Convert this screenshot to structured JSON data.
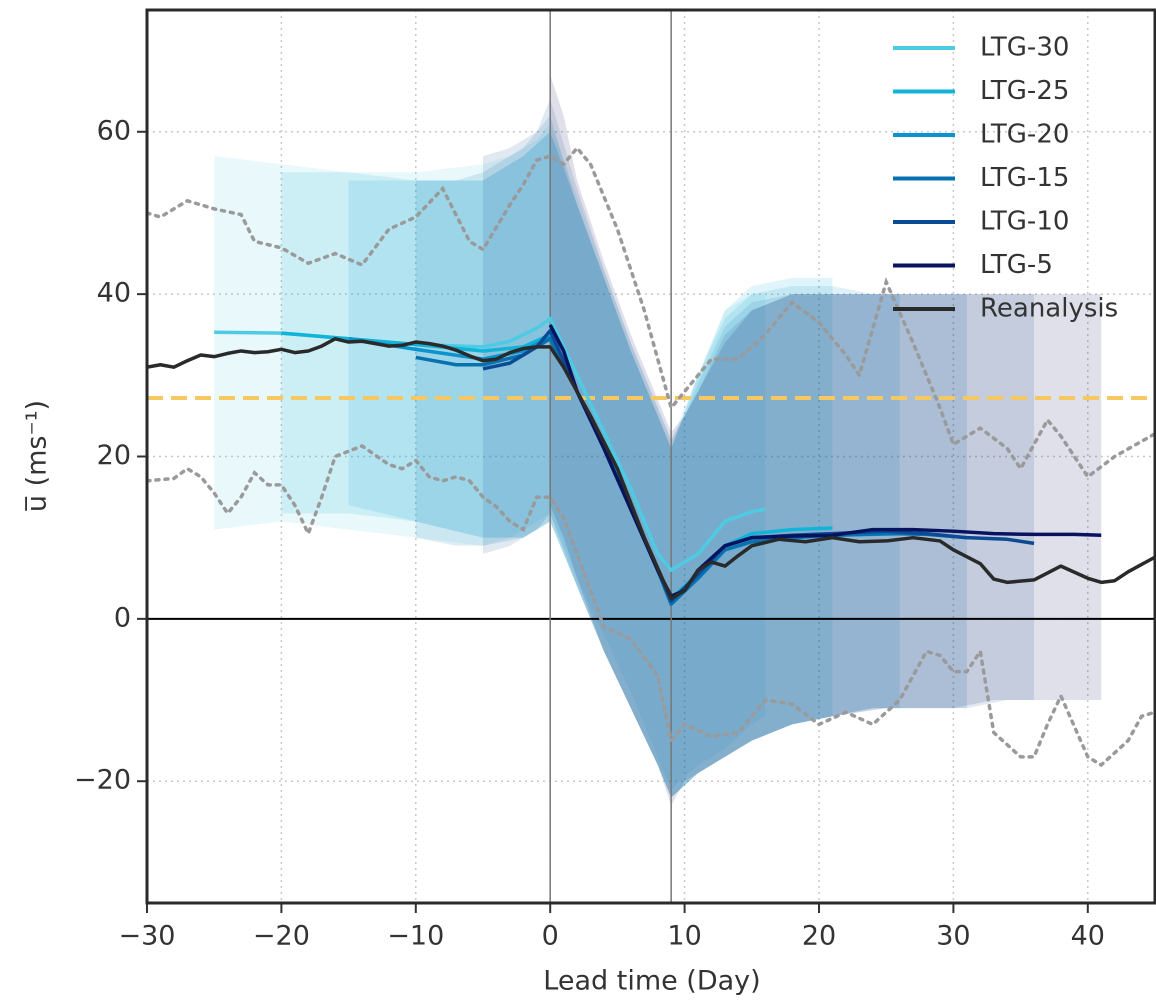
{
  "chart_data": {
    "type": "line",
    "x_label": "Lead time (Day)",
    "y_label": "u̅ (ms⁻¹)",
    "xlim": [
      -30,
      45
    ],
    "ylim": [
      -35,
      75
    ],
    "xticks": [
      {
        "value": -30,
        "label": "−30"
      },
      {
        "value": -20,
        "label": "−20"
      },
      {
        "value": -10,
        "label": "−10"
      },
      0,
      10,
      20,
      30,
      40
    ],
    "yticks": [
      {
        "value": -20,
        "label": "−20"
      },
      0,
      20,
      40,
      60
    ],
    "grid": true,
    "legend": "upper right",
    "zero_line": 0,
    "vlines": [
      0,
      9
    ],
    "threshold": {
      "value": 27.2,
      "color": "#f5c862"
    },
    "series": [
      {
        "name": "LTG-30",
        "color": "#4ecbe3",
        "x": [
          -25,
          -20,
          -15,
          -10,
          -5,
          -3,
          -1,
          0,
          2,
          4,
          6,
          8,
          9,
          11,
          13,
          15,
          16
        ],
        "values": [
          35.3,
          35.2,
          34.5,
          33.8,
          33.5,
          34.2,
          35.8,
          37,
          30,
          23,
          16,
          8,
          6,
          8,
          12,
          13.2,
          13.5
        ],
        "lower": [
          11,
          12,
          11,
          10,
          9,
          10,
          12,
          13,
          5,
          -2,
          -9,
          -17,
          -21,
          -18,
          -16,
          -13,
          -12
        ],
        "upper": [
          57,
          56,
          55,
          55,
          56,
          57,
          59,
          61,
          52,
          43,
          34,
          26,
          22,
          30,
          38,
          40,
          40
        ]
      },
      {
        "name": "LTG-25",
        "color": "#10b4d8",
        "x": [
          -20,
          -15,
          -10,
          -5,
          -2,
          0,
          2,
          4,
          6,
          8,
          9,
          11,
          13,
          15,
          18,
          21
        ],
        "values": [
          35.2,
          34.5,
          33.8,
          33,
          33.5,
          35,
          28,
          21,
          14,
          6,
          2.5,
          5.5,
          9,
          10.5,
          11,
          11.2
        ],
        "lower": [
          13,
          13,
          12,
          10,
          10,
          12,
          4,
          -4,
          -11,
          -18,
          -22,
          -19,
          -17,
          -15,
          -13,
          -12
        ],
        "upper": [
          55,
          55,
          54,
          54,
          57,
          60,
          51,
          42,
          33,
          25,
          21,
          30,
          38,
          41,
          42,
          42
        ]
      },
      {
        "name": "LTG-20",
        "color": "#0a93cc",
        "x": [
          -15,
          -10,
          -5,
          -2,
          0,
          2,
          4,
          6,
          8,
          9,
          11,
          13,
          15,
          18,
          21,
          24,
          26
        ],
        "values": [
          34.5,
          33.2,
          32,
          33,
          34.7,
          28,
          21,
          13.5,
          6,
          2,
          5,
          8.5,
          9.5,
          10,
          10.3,
          10.4,
          10.5
        ],
        "lower": [
          14,
          12,
          10,
          10,
          12,
          4,
          -4,
          -11,
          -18,
          -22,
          -19,
          -17,
          -15,
          -13,
          -12,
          -11,
          -11
        ],
        "upper": [
          54,
          54,
          54,
          57,
          60,
          51,
          42,
          33,
          25,
          21,
          30,
          37,
          40,
          41,
          41,
          40,
          40
        ]
      },
      {
        "name": "LTG-15",
        "color": "#0872b0",
        "x": [
          -10,
          -7,
          -5,
          -2,
          0,
          2,
          4,
          6,
          8,
          9,
          11,
          13,
          15,
          18,
          21,
          25,
          28,
          31
        ],
        "values": [
          32.2,
          31.3,
          31.3,
          32.5,
          34.5,
          28,
          21,
          13.5,
          6,
          1.8,
          5,
          8.5,
          9.5,
          10,
          10.3,
          10.5,
          10.4,
          10
        ],
        "lower": [
          10,
          9,
          9,
          10,
          12,
          4,
          -4,
          -11,
          -18,
          -22,
          -19,
          -17,
          -15,
          -13,
          -12,
          -11,
          -11,
          -11
        ],
        "upper": [
          54,
          54,
          55,
          58,
          62,
          51,
          42,
          33,
          25,
          21,
          29,
          36,
          39,
          40,
          40,
          40,
          40,
          40
        ]
      },
      {
        "name": "LTG-10",
        "color": "#0d4a94",
        "x": [
          -5,
          -3,
          -1,
          0,
          2,
          4,
          6,
          8,
          9,
          11,
          13,
          15,
          18,
          21,
          25,
          28,
          31,
          34,
          36
        ],
        "values": [
          30.8,
          31.5,
          33.5,
          35.5,
          28,
          21,
          13.5,
          6,
          2.2,
          5.5,
          9,
          10,
          10.3,
          10.5,
          10.8,
          10.5,
          10,
          9.8,
          9.3
        ],
        "lower": [
          8,
          9,
          11,
          13,
          4,
          -4,
          -11,
          -18,
          -22,
          -19,
          -17,
          -15,
          -13,
          -12,
          -11,
          -11,
          -11,
          -10,
          -10
        ],
        "upper": [
          57,
          58,
          60,
          64,
          53,
          43,
          34,
          26,
          22,
          28,
          35,
          38,
          40,
          40,
          40,
          40,
          40,
          40,
          40
        ]
      },
      {
        "name": "LTG-5",
        "color": "#07135e",
        "x": [
          0,
          1,
          2,
          4,
          6,
          8,
          9,
          10,
          11,
          13,
          15,
          18,
          21,
          24,
          27,
          30,
          33,
          36,
          39,
          41
        ],
        "values": [
          36.2,
          33,
          28,
          21,
          13.5,
          6,
          2.8,
          3.5,
          6,
          9,
          10,
          10.2,
          10.3,
          11,
          11,
          10.8,
          10.5,
          10.4,
          10.4,
          10.3
        ],
        "lower": [
          14,
          10,
          5,
          -4,
          -11,
          -18,
          -23,
          -20,
          -19,
          -17,
          -15,
          -13,
          -12,
          -11,
          -11,
          -11,
          -10,
          -10,
          -10,
          -10
        ],
        "upper": [
          67,
          62,
          54,
          44,
          35,
          27,
          23,
          25,
          28,
          34,
          38,
          40,
          40,
          40,
          40,
          40,
          40,
          40,
          40,
          40
        ]
      },
      {
        "name": "Reanalysis",
        "color": "#2a2a2a",
        "x": [
          -30,
          -29,
          -28,
          -27,
          -26,
          -25,
          -24,
          -23,
          -22,
          -21,
          -20,
          -19,
          -18,
          -17,
          -16,
          -15,
          -14,
          -13,
          -12,
          -11,
          -10,
          -9,
          -8,
          -7,
          -6,
          -5,
          -4,
          -3,
          -2,
          -1,
          0,
          1,
          3,
          5,
          7,
          9,
          10,
          11,
          12,
          13,
          14,
          15,
          17,
          19,
          21,
          23,
          25,
          27,
          29,
          30,
          32,
          33,
          34,
          36,
          38,
          40,
          41,
          42,
          43,
          45
        ],
        "values": [
          31,
          31.3,
          31,
          31.8,
          32.5,
          32.3,
          32.7,
          33,
          32.8,
          32.9,
          33.2,
          32.8,
          33,
          33.6,
          34.5,
          34.1,
          34.2,
          33.9,
          33.6,
          33.7,
          34.1,
          33.9,
          33.6,
          33.1,
          32.4,
          31.8,
          32,
          32.8,
          33.3,
          33.5,
          33.5,
          31,
          25,
          18.5,
          10,
          2.5,
          3.5,
          6,
          7,
          6.5,
          7.8,
          9,
          9.8,
          9.5,
          10,
          9.5,
          9.6,
          10,
          9.6,
          8.5,
          6.8,
          4.9,
          4.5,
          4.8,
          6.5,
          5,
          4.5,
          4.7,
          5.8,
          7.6
        ],
        "dotted_color": "#9a9a9a",
        "dotted_upper": {
          "x": [
            -30,
            -29,
            -27,
            -25,
            -23,
            -22,
            -20,
            -18,
            -16,
            -14,
            -12,
            -10,
            -8,
            -6,
            -5,
            -3,
            -2,
            -1,
            0,
            1,
            2,
            3,
            5,
            7,
            9,
            10,
            12,
            14,
            16,
            18,
            20,
            22,
            23,
            25,
            27,
            29,
            30,
            32,
            34,
            35,
            37,
            38,
            40,
            42,
            45
          ],
          "values": [
            50,
            49.5,
            51.5,
            50.5,
            49.8,
            46.5,
            45.7,
            43.8,
            45,
            43.6,
            48,
            49.5,
            53,
            46.5,
            45.5,
            51,
            53.5,
            56.5,
            57,
            56,
            58,
            56,
            48,
            38,
            26,
            28,
            32,
            32,
            35,
            39,
            36.5,
            32.5,
            30,
            41.5,
            34,
            26,
            21.5,
            23.5,
            21,
            18.5,
            24.5,
            22.5,
            17.5,
            20,
            22.8
          ]
        },
        "dotted_lower": {
          "x": [
            -30,
            -28,
            -27,
            -26,
            -25,
            -24,
            -23,
            -22,
            -21,
            -20,
            -19,
            -18,
            -17,
            -16,
            -14,
            -12,
            -11,
            -10,
            -9,
            -8,
            -7,
            -6,
            -5,
            -4,
            -3,
            -2,
            -1,
            0,
            1,
            2,
            3,
            4,
            6,
            8,
            9,
            10,
            12,
            14,
            16,
            18,
            20,
            22,
            24,
            26,
            28,
            29,
            30,
            31,
            32,
            33,
            35,
            36,
            37,
            38,
            40,
            41,
            43,
            44,
            45
          ],
          "values": [
            17,
            17.3,
            18.5,
            17.5,
            15.5,
            13,
            15,
            18,
            16.5,
            16.5,
            14,
            10.5,
            15,
            20,
            21.3,
            19,
            18.5,
            19.5,
            17.5,
            17,
            17.5,
            17,
            15,
            13.8,
            12,
            11,
            15,
            15,
            12.5,
            8,
            3.5,
            -1,
            -2.5,
            -7,
            -15,
            -13,
            -14.5,
            -14,
            -10,
            -10.5,
            -13,
            -11.5,
            -13,
            -10,
            -4,
            -4.5,
            -6.5,
            -6.5,
            -4,
            -14,
            -17,
            -17,
            -13,
            -9.5,
            -17,
            -18,
            -15,
            -12,
            -11.5
          ]
        }
      }
    ]
  }
}
